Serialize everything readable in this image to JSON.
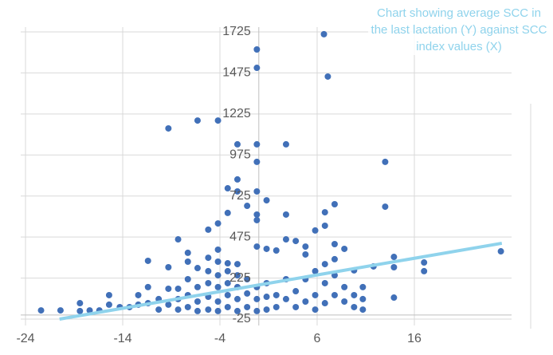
{
  "chart_data": {
    "type": "scatter",
    "title": "Chart showing average SCC in the last lactation (Y) against SCC index values (X)",
    "xlim": [
      -24,
      26
    ],
    "xticks": [
      -24,
      -14,
      -4,
      6,
      16
    ],
    "ylim": [
      -25,
      1725
    ],
    "yticks": [
      -25,
      225,
      475,
      725,
      975,
      1225,
      1475,
      1725
    ],
    "grid": true,
    "color": "#4170b8",
    "trendline": {
      "x": [
        -20.5,
        25
      ],
      "y": [
        -25,
        437
      ],
      "color": "#8fd3ec"
    },
    "x": [
      6.7,
      -0.2,
      -0.2,
      7.1,
      -9.3,
      -6.3,
      -4.2,
      -2.2,
      -0.2,
      2.8,
      -0.2,
      13,
      -2.2,
      -3.2,
      -2.2,
      -0.2,
      0.8,
      -1.2,
      7.8,
      6.8,
      13,
      -3.2,
      -0.2,
      -0.2,
      2.8,
      -4.2,
      -5.2,
      6.8,
      5.8,
      -8.3,
      -0.2,
      0.8,
      1.8,
      2.8,
      3.8,
      4.8,
      7.8,
      8.8,
      4.8,
      24.9,
      13.9,
      17,
      17,
      -11.4,
      -9.3,
      -7.3,
      -7.3,
      -5.2,
      -4.2,
      -4.2,
      -3.2,
      -2.2,
      -5.2,
      -6.3,
      6.8,
      7.8,
      9.8,
      11.8,
      13.9,
      -22.4,
      -20.4,
      -18.4,
      -18.4,
      -17.4,
      -16.4,
      -15.4,
      -15.4,
      -14.3,
      -13.3,
      -12.4,
      -12.4,
      -11.4,
      -11.4,
      -10.3,
      -10.3,
      -9.3,
      -9.3,
      -8.3,
      -8.3,
      -8.3,
      -7.3,
      -7.3,
      -7.3,
      -6.3,
      -6.3,
      -6.3,
      -5.2,
      -5.2,
      -5.2,
      -4.2,
      -4.2,
      -4.2,
      -4.2,
      -3.2,
      -3.2,
      -3.2,
      -3.2,
      -2.2,
      -2.2,
      -2.2,
      -2.2,
      -1.2,
      -1.2,
      -1.2,
      -0.2,
      -0.2,
      -0.2,
      0.8,
      0.8,
      0.8,
      1.8,
      1.8,
      2.8,
      2.8,
      3.8,
      3.8,
      4.8,
      4.8,
      5.8,
      5.8,
      5.8,
      6.8,
      6.8,
      7.8,
      7.8,
      8.8,
      8.8,
      9.8,
      9.8,
      10.7,
      10.7,
      10.7,
      13.9
    ],
    "y": [
      1711,
      1618,
      1506,
      1453,
      1137,
      1185,
      1185,
      1040,
      1040,
      1040,
      933,
      933,
      826,
      772,
      753,
      753,
      699,
      665,
      675,
      626,
      660,
      622,
      612,
      578,
      612,
      558,
      520,
      544,
      515,
      461,
      417,
      403,
      393,
      461,
      451,
      417,
      432,
      403,
      369,
      388,
      354,
      320,
      267,
      330,
      291,
      379,
      325,
      349,
      398,
      325,
      315,
      310,
      267,
      286,
      310,
      340,
      272,
      296,
      291,
      28,
      28,
      72,
      24,
      28,
      28,
      121,
      63,
      48,
      48,
      121,
      63,
      170,
      72,
      97,
      33,
      160,
      63,
      160,
      97,
      33,
      218,
      121,
      48,
      170,
      82,
      24,
      194,
      111,
      33,
      242,
      170,
      82,
      24,
      267,
      194,
      121,
      48,
      242,
      170,
      97,
      24,
      218,
      131,
      48,
      170,
      97,
      24,
      194,
      111,
      33,
      121,
      48,
      218,
      97,
      145,
      48,
      218,
      82,
      267,
      121,
      33,
      194,
      72,
      242,
      121,
      170,
      82,
      121,
      48,
      170,
      97,
      33,
      106
    ]
  }
}
